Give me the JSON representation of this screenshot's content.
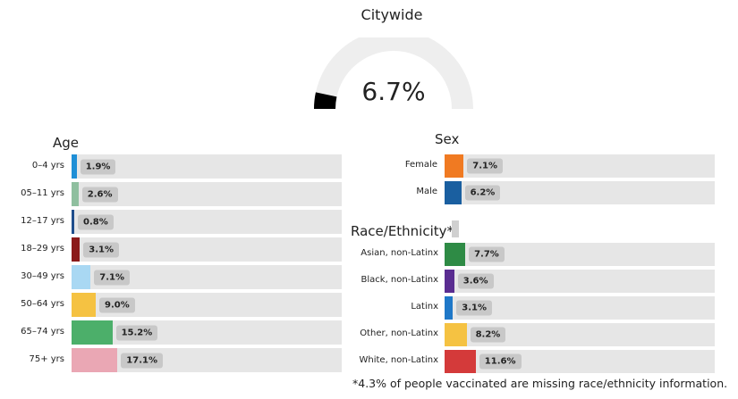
{
  "gauge": {
    "title": "Citywide",
    "value_label": "6.7%",
    "value": 6.7,
    "track_color": "#eeeeee",
    "fill_color": "#000000"
  },
  "age": {
    "title": "Age",
    "rows": [
      {
        "label": "0–4 yrs",
        "value": 1.9,
        "value_label": "1.9%",
        "color": "#1f8fd6"
      },
      {
        "label": "05–11 yrs",
        "value": 2.6,
        "value_label": "2.6%",
        "color": "#8fbf9f"
      },
      {
        "label": "12–17 yrs",
        "value": 0.8,
        "value_label": "0.8%",
        "color": "#1f4e8c"
      },
      {
        "label": "18–29 yrs",
        "value": 3.1,
        "value_label": "3.1%",
        "color": "#8b1a1a"
      },
      {
        "label": "30–49 yrs",
        "value": 7.1,
        "value_label": "7.1%",
        "color": "#a9d8f3"
      },
      {
        "label": "50–64 yrs",
        "value": 9.0,
        "value_label": "9.0%",
        "color": "#f5c242"
      },
      {
        "label": "65–74 yrs",
        "value": 15.2,
        "value_label": "15.2%",
        "color": "#4caf6a"
      },
      {
        "label": "75+ yrs",
        "value": 17.1,
        "value_label": "17.1%",
        "color": "#eaa7b4"
      }
    ]
  },
  "sex": {
    "title": "Sex",
    "rows": [
      {
        "label": "Female",
        "value": 7.1,
        "value_label": "7.1%",
        "color": "#f07a22"
      },
      {
        "label": "Male",
        "value": 6.2,
        "value_label": "6.2%",
        "color": "#1a5fa0"
      }
    ]
  },
  "race": {
    "title": "Race/Ethnicity*",
    "rows": [
      {
        "label": "Asian, non-Latinx",
        "value": 7.7,
        "value_label": "7.7%",
        "color": "#2e8b45"
      },
      {
        "label": "Black, non-Latinx",
        "value": 3.6,
        "value_label": "3.6%",
        "color": "#5a2d91"
      },
      {
        "label": "Latinx",
        "value": 3.1,
        "value_label": "3.1%",
        "color": "#1f78c8"
      },
      {
        "label": "Other, non-Latinx",
        "value": 8.2,
        "value_label": "8.2%",
        "color": "#f5c242"
      },
      {
        "label": "White, non-Latinx",
        "value": 11.6,
        "value_label": "11.6%",
        "color": "#d43a3a"
      }
    ]
  },
  "footnote": "*4.3% of people vaccinated are missing race/ethnicity information.",
  "chart_data": {
    "type": "bar",
    "title": "Citywide",
    "summary_value": 6.7,
    "groups": [
      {
        "name": "Age",
        "categories": [
          "0–4 yrs",
          "05–11 yrs",
          "12–17 yrs",
          "18–29 yrs",
          "30–49 yrs",
          "50–64 yrs",
          "65–74 yrs",
          "75+ yrs"
        ],
        "values": [
          1.9,
          2.6,
          0.8,
          3.1,
          7.1,
          9.0,
          15.2,
          17.1
        ]
      },
      {
        "name": "Sex",
        "categories": [
          "Female",
          "Male"
        ],
        "values": [
          7.1,
          6.2
        ]
      },
      {
        "name": "Race/Ethnicity*",
        "categories": [
          "Asian, non-Latinx",
          "Black, non-Latinx",
          "Latinx",
          "Other, non-Latinx",
          "White, non-Latinx"
        ],
        "values": [
          7.7,
          3.6,
          3.1,
          8.2,
          11.6
        ]
      }
    ]
  }
}
